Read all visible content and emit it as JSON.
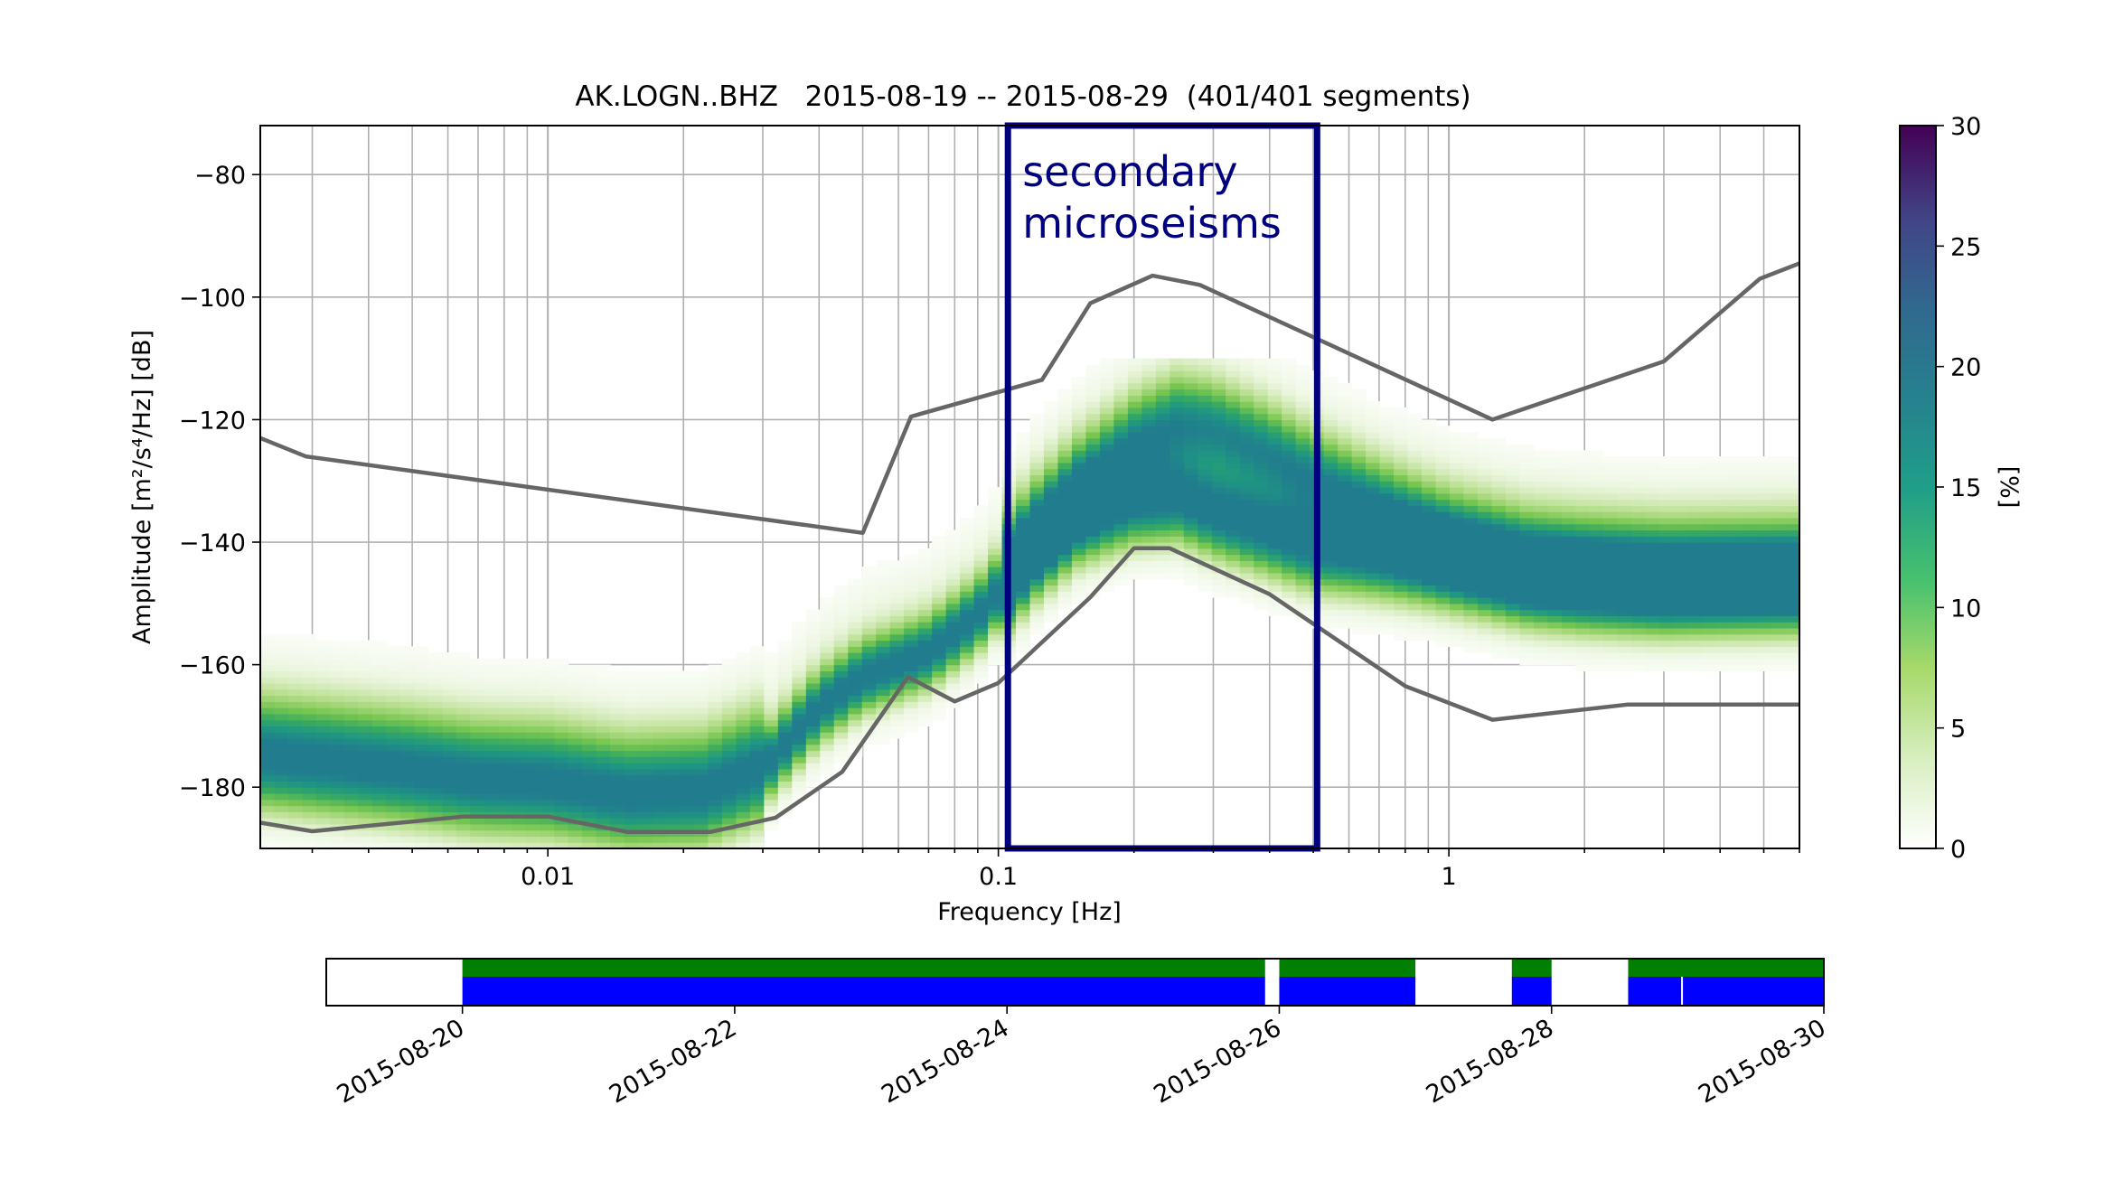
{
  "chart_data": [
    {
      "type": "heatmap",
      "title": "AK.LOGN..BHZ   2015-08-19 -- 2015-08-29  (401/401 segments)",
      "xlabel": "Frequency [Hz]",
      "ylabel": "Amplitude [m²/s⁴/Hz] [dB]",
      "x_scale": "log",
      "xlim": [
        0.0023,
        6.0
      ],
      "ylim": [
        -190,
        -72
      ],
      "grid": true,
      "x_ticks": [
        {
          "value": 0.01,
          "label": "0.01"
        },
        {
          "value": 0.1,
          "label": "0.1"
        },
        {
          "value": 1,
          "label": "1"
        }
      ],
      "y_ticks": [
        {
          "value": -80,
          "label": "−80"
        },
        {
          "value": -100,
          "label": "−100"
        },
        {
          "value": -120,
          "label": "−120"
        },
        {
          "value": -140,
          "label": "−140"
        },
        {
          "value": -160,
          "label": "−160"
        },
        {
          "value": -180,
          "label": "−180"
        }
      ],
      "colorbar": {
        "label": "[%]",
        "range": [
          0,
          30
        ],
        "ticks": [
          "0",
          "5",
          "10",
          "15",
          "20",
          "25",
          "30"
        ],
        "colormap": "viridis_r"
      },
      "series": [
        {
          "kind": "model_line",
          "color": "#666666",
          "points": [
            [
              0.0023,
              -123
            ],
            [
              0.0029,
              -126
            ],
            [
              0.05,
              -138.5
            ],
            [
              0.064,
              -119.5
            ],
            [
              0.125,
              -113.5
            ],
            [
              0.16,
              -101
            ],
            [
              0.22,
              -96.5
            ],
            [
              0.28,
              -98
            ],
            [
              1.25,
              -120
            ],
            [
              3.0,
              -110.5
            ],
            [
              4.9,
              -97
            ],
            [
              6.0,
              -94.5
            ]
          ]
        },
        {
          "kind": "model_line",
          "color": "#666666",
          "points": [
            [
              0.0023,
              -185.8
            ],
            [
              0.003,
              -187.2
            ],
            [
              0.0065,
              -184.8
            ],
            [
              0.01,
              -184.8
            ],
            [
              0.015,
              -187.3
            ],
            [
              0.023,
              -187.3
            ],
            [
              0.032,
              -185
            ],
            [
              0.045,
              -177.5
            ],
            [
              0.063,
              -162
            ],
            [
              0.08,
              -166
            ],
            [
              0.1,
              -163
            ],
            [
              0.16,
              -149
            ],
            [
              0.2,
              -141
            ],
            [
              0.24,
              -141
            ],
            [
              0.4,
              -148.5
            ],
            [
              0.8,
              -163.5
            ],
            [
              1.25,
              -169
            ],
            [
              2.5,
              -166.5
            ],
            [
              6.0,
              -166.5
            ]
          ]
        },
        {
          "kind": "density_ridge",
          "name": "",
          "points": [
            [
              0.0023,
              -175
            ],
            [
              0.005,
              -177.5
            ],
            [
              0.007,
              -179
            ],
            [
              0.01,
              -179.5
            ],
            [
              0.015,
              -181.5
            ],
            [
              0.022,
              -181
            ],
            [
              0.03,
              -177
            ],
            [
              0.04,
              -167
            ],
            [
              0.05,
              -162
            ],
            [
              0.07,
              -158
            ],
            [
              0.09,
              -152
            ],
            [
              0.1,
              -148
            ],
            [
              0.12,
              -141.5
            ],
            [
              0.15,
              -136
            ],
            [
              0.2,
              -133
            ],
            [
              0.25,
              -132.5
            ],
            [
              0.3,
              -135
            ],
            [
              0.4,
              -138
            ],
            [
              0.5,
              -140.5
            ],
            [
              0.7,
              -141.5
            ],
            [
              1.0,
              -143
            ],
            [
              1.5,
              -145.5
            ],
            [
              2.0,
              -146.5
            ],
            [
              3.0,
              -147
            ],
            [
              6.0,
              -146.5
            ]
          ]
        },
        {
          "kind": "density_ridge",
          "name": "",
          "points": [
            [
              0.1,
              -146
            ],
            [
              0.12,
              -139
            ],
            [
              0.15,
              -131.5
            ],
            [
              0.2,
              -124
            ],
            [
              0.25,
              -120.5
            ],
            [
              0.3,
              -121.5
            ],
            [
              0.4,
              -125.5
            ],
            [
              0.5,
              -129.5
            ],
            [
              0.7,
              -135
            ],
            [
              1.0,
              -140.5
            ],
            [
              1.5,
              -144
            ],
            [
              3.0,
              -145.5
            ],
            [
              6.0,
              -145.5
            ]
          ]
        }
      ],
      "annotation": {
        "text_lines": [
          "secondary",
          "microseisms"
        ],
        "x_range": [
          0.105,
          0.51
        ],
        "y_range": [
          -190,
          -72
        ],
        "color": "#00007f"
      }
    },
    {
      "type": "timeline",
      "x_range": [
        "2015-08-19",
        "2015-08-30"
      ],
      "tick_labels": [
        "2015-08-20",
        "2015-08-22",
        "2015-08-24",
        "2015-08-26",
        "2015-08-28",
        "2015-08-30"
      ],
      "tick_values": [
        "2015-08-20",
        "2015-08-22",
        "2015-08-24",
        "2015-08-26",
        "2015-08-28",
        "2015-08-30"
      ],
      "rows": [
        {
          "kind": "data_available",
          "color": "#007f00",
          "segments": [
            [
              "2015-08-20 00:00",
              "2015-08-25 21:30"
            ],
            [
              "2015-08-26 00:00",
              "2015-08-27 00:00"
            ],
            [
              "2015-08-27 17:00",
              "2015-08-28 00:00"
            ],
            [
              "2015-08-28 13:30",
              "2015-08-30 00:00"
            ]
          ]
        },
        {
          "kind": "psd_used",
          "color": "#0000ff",
          "segments": [
            [
              "2015-08-20 00:00",
              "2015-08-25 21:30"
            ],
            [
              "2015-08-26 00:00",
              "2015-08-27 00:00"
            ],
            [
              "2015-08-27 17:00",
              "2015-08-28 00:00"
            ],
            [
              "2015-08-28 13:30",
              "2015-08-30 00:00"
            ]
          ],
          "gaps": [
            "2015-08-28 23:00"
          ]
        }
      ]
    }
  ]
}
